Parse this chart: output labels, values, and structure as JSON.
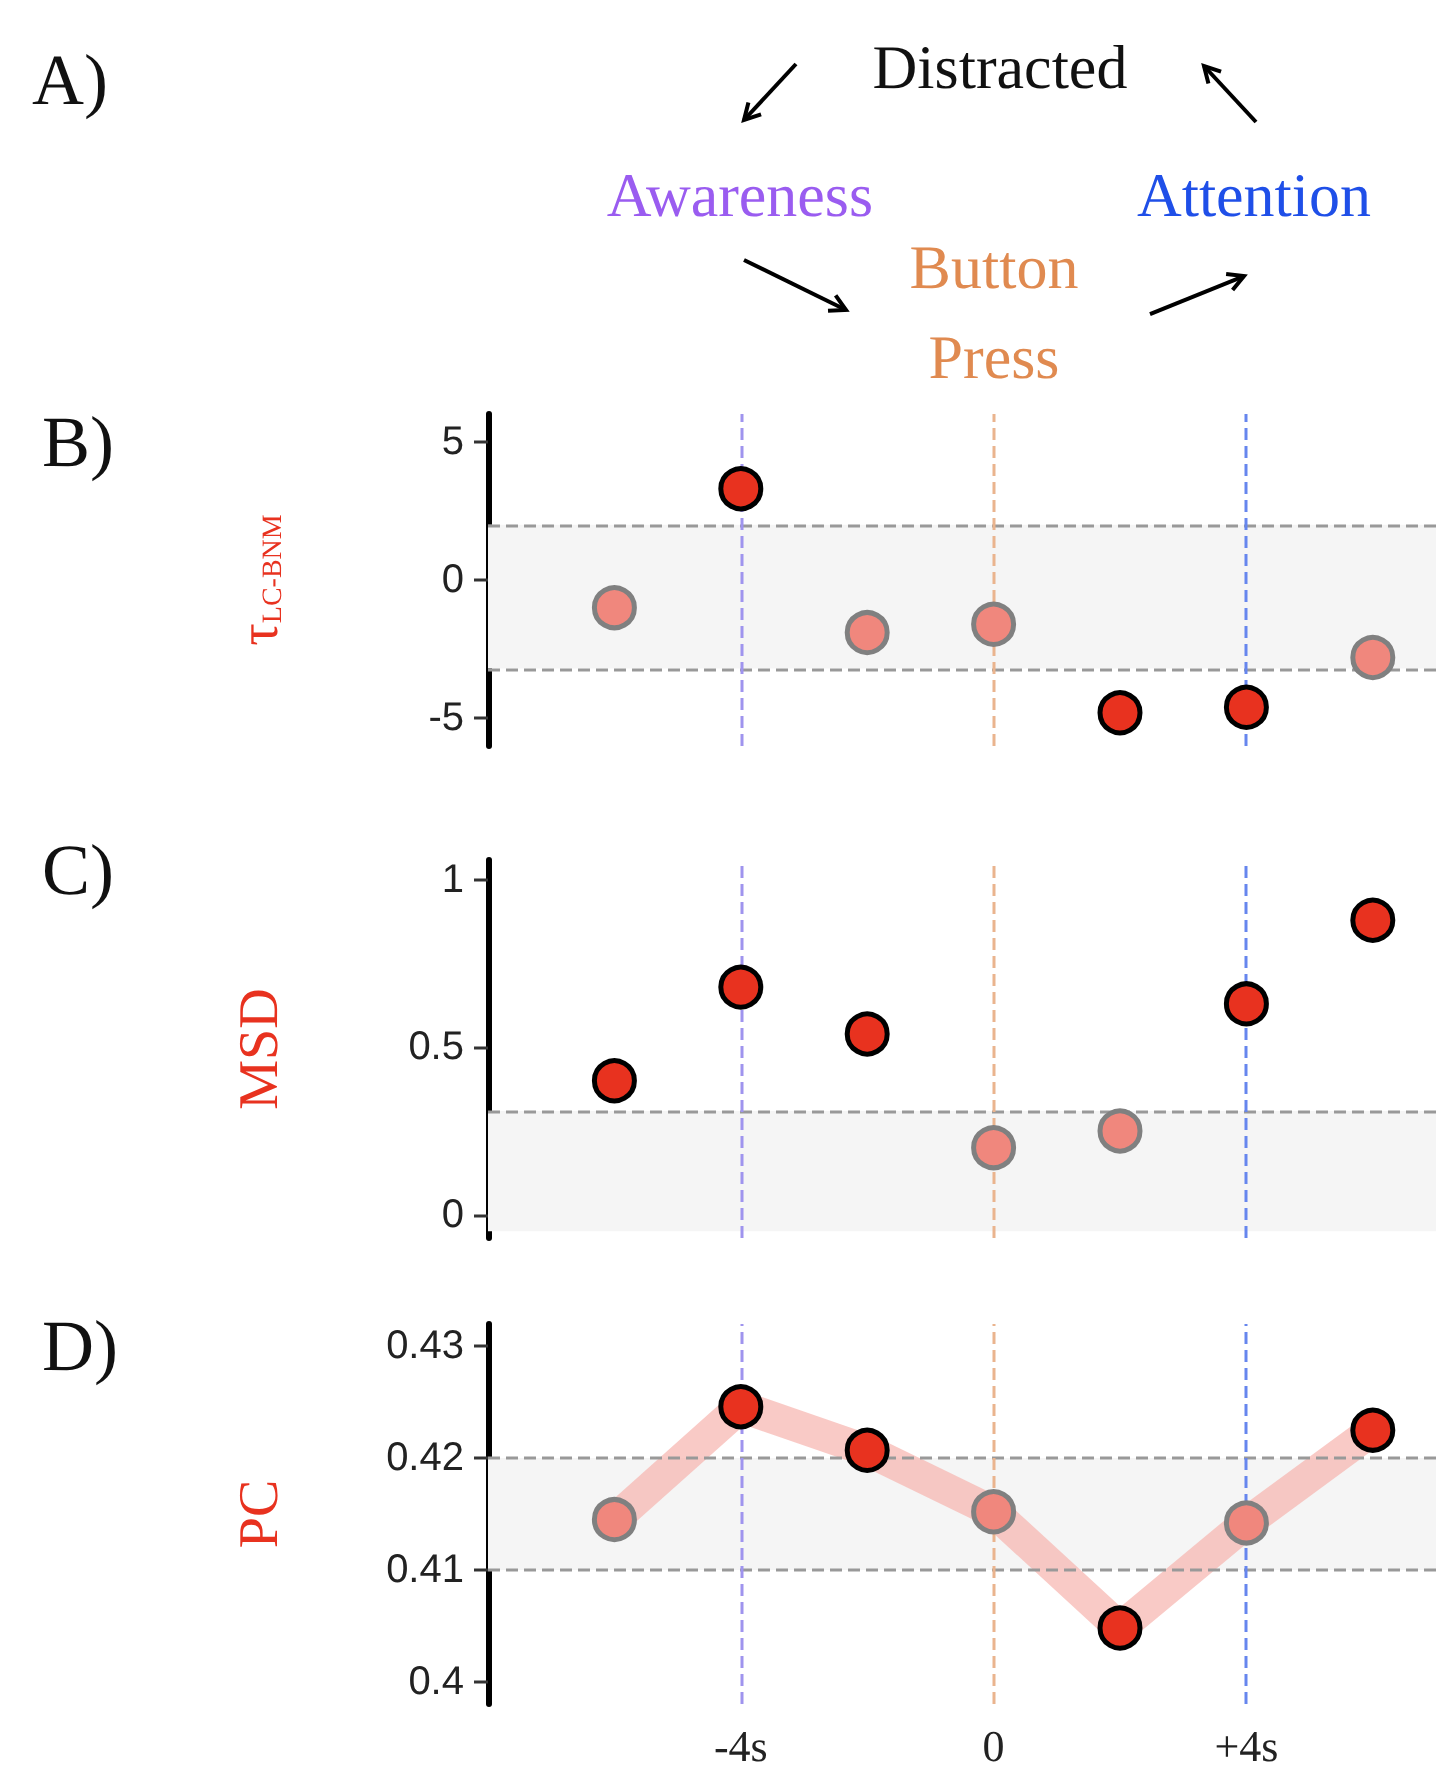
{
  "chart_data": [
    {
      "type": "other",
      "title": "A)",
      "annotations": [
        "Distracted",
        "Awareness",
        "Button Press",
        "Attention"
      ],
      "colors": [
        "#111111",
        "#9a5cf0",
        "#e08a50",
        "#1f4fe8"
      ]
    },
    {
      "type": "scatter",
      "title": "B)",
      "ylabel": "τ$_{LC-BNM}$",
      "x": [
        -6,
        -4,
        -2,
        0,
        2,
        4,
        6
      ],
      "xlim": [
        -8,
        7
      ],
      "ylim": [
        -6,
        6
      ],
      "yticks": [
        -5,
        0,
        5
      ],
      "tick_labels": "y",
      "marker": "circle",
      "series": [
        {
          "color": "#e8321f",
          "values": [
            null,
            3.3,
            null,
            null,
            -4.8,
            -4.6,
            null
          ]
        },
        {
          "color": "#f0877d",
          "values": [
            -1.0,
            null,
            -1.9,
            -1.6,
            null,
            null,
            -2.8
          ]
        }
      ],
      "bands": [
        {
          "axis": "y",
          "from": -3.2,
          "to": 2,
          "color": "#f5f5f5"
        }
      ],
      "ref_lines": [
        {
          "axis": "y",
          "value": 2,
          "color": "#999999",
          "line_style": "dashed"
        },
        {
          "axis": "y",
          "value": -3.2,
          "color": "#999999",
          "line_style": "dashed"
        },
        {
          "axis": "x",
          "value": -4,
          "color": "#9f94ee",
          "line_style": "dashed"
        },
        {
          "axis": "x",
          "value": 0,
          "color": "#eab48e",
          "line_style": "dashed"
        },
        {
          "axis": "x",
          "value": 4,
          "color": "#6686ee",
          "line_style": "dashed"
        }
      ]
    },
    {
      "type": "scatter",
      "title": "C)",
      "ylabel": "MSD",
      "x": [
        -6,
        -4,
        -2,
        0,
        2,
        4,
        6
      ],
      "xlim": [
        -8,
        7
      ],
      "ylim": [
        -0.07,
        1.06
      ],
      "yticks": [
        0,
        0.5,
        1
      ],
      "tick_labels": "y",
      "marker": "circle",
      "series": [
        {
          "color": "#e8321f",
          "values": [
            0.4,
            0.68,
            0.54,
            null,
            null,
            0.63,
            0.88
          ]
        },
        {
          "color": "#f0877d",
          "values": [
            null,
            null,
            null,
            0.2,
            0.25,
            null,
            null
          ]
        }
      ],
      "bands": [
        {
          "axis": "y",
          "from": -0.05,
          "to": 0.31,
          "color": "#f5f5f5"
        }
      ],
      "ref_lines": [
        {
          "axis": "y",
          "value": 0.31,
          "color": "#999999",
          "line_style": "dashed"
        },
        {
          "axis": "x",
          "value": -4,
          "color": "#9f94ee",
          "line_style": "dashed"
        },
        {
          "axis": "x",
          "value": 0,
          "color": "#eab48e",
          "line_style": "dashed"
        },
        {
          "axis": "x",
          "value": 4,
          "color": "#6686ee",
          "line_style": "dashed"
        }
      ]
    },
    {
      "type": "scatter",
      "title": "D)",
      "ylabel": "PC",
      "x": [
        -6,
        -4,
        -2,
        0,
        2,
        4,
        6
      ],
      "xlim": [
        -8,
        7
      ],
      "xticks": [
        {
          "value": -4,
          "label": "-4s"
        },
        0,
        {
          "value": 4,
          "label": "+4s"
        }
      ],
      "ylim": [
        0.398,
        0.432
      ],
      "yticks": [
        0.4,
        0.41,
        0.42,
        0.43
      ],
      "series": [
        {
          "type": "line",
          "color": "#f6b4ae",
          "values": [
            0.4145,
            0.4246,
            0.4207,
            0.4152,
            0.4048,
            0.4142,
            0.4225
          ]
        },
        {
          "marker": "circle",
          "color": "#e8321f",
          "values": [
            null,
            0.4246,
            0.4207,
            null,
            0.4048,
            null,
            0.4225
          ]
        },
        {
          "marker": "circle",
          "color": "#f0877d",
          "values": [
            0.4145,
            null,
            null,
            0.4152,
            null,
            0.4142,
            null
          ]
        }
      ],
      "bands": [
        {
          "axis": "y",
          "from": 0.41,
          "to": 0.42,
          "color": "#f5f5f5"
        }
      ],
      "ref_lines": [
        {
          "axis": "y",
          "value": 0.42,
          "color": "#999999",
          "line_style": "dashed"
        },
        {
          "axis": "y",
          "value": 0.41,
          "color": "#999999",
          "line_style": "dashed"
        },
        {
          "axis": "x",
          "value": -4,
          "color": "#9f94ee",
          "line_style": "dashed"
        },
        {
          "axis": "x",
          "value": 0,
          "color": "#eab48e",
          "line_style": "dashed"
        },
        {
          "axis": "x",
          "value": 4,
          "color": "#6686ee",
          "line_style": "dashed"
        }
      ]
    }
  ]
}
